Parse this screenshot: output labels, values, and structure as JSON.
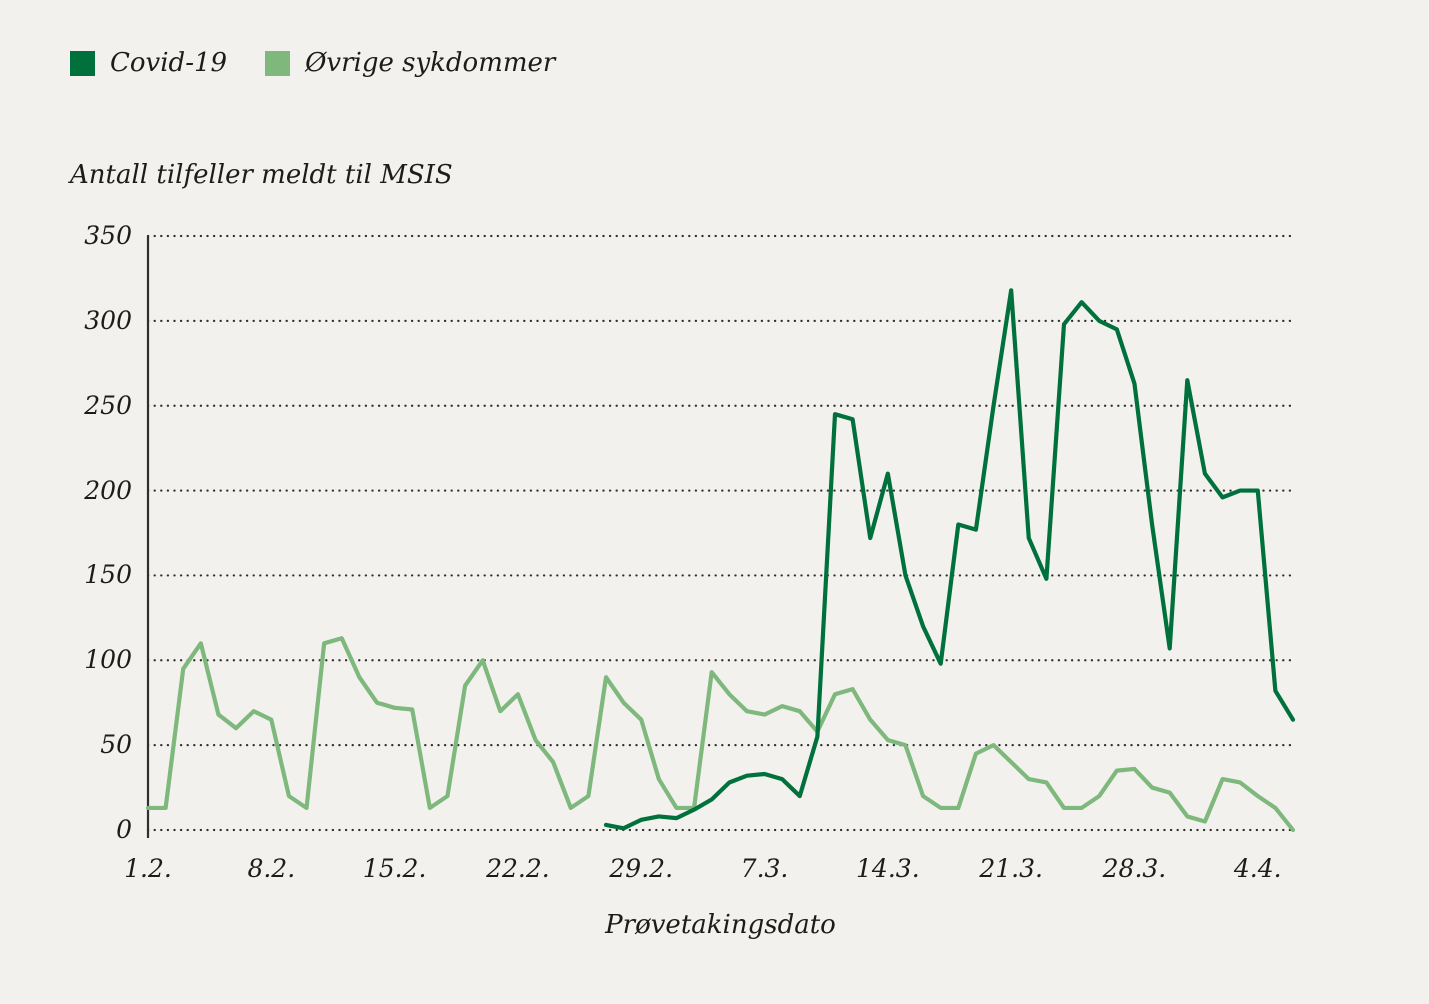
{
  "colors": {
    "background": "#f2f1ee",
    "grid": "#2f2f2e",
    "text": "#1c1c1b",
    "covid19": "#00703c",
    "other_diseases": "#7eb87d"
  },
  "legend": {
    "items": [
      {
        "label": "Covid-19",
        "color": "#00703c"
      },
      {
        "label": "Øvrige sykdommer",
        "color": "#7eb87d"
      }
    ]
  },
  "chart_data": {
    "type": "line",
    "title": "Antall tilfeller meldt til MSIS",
    "xlabel": "Prøvetakingsdato",
    "ylabel": "Antall tilfeller meldt til MSIS",
    "ylim": [
      0,
      350
    ],
    "yticks": [
      0,
      50,
      100,
      150,
      200,
      250,
      300,
      350
    ],
    "grid": "horizontal-dotted",
    "legend_position": "top-left",
    "days": 66,
    "x_ticks": [
      {
        "day": 0,
        "label": "1.2."
      },
      {
        "day": 7,
        "label": "8.2."
      },
      {
        "day": 14,
        "label": "15.2."
      },
      {
        "day": 21,
        "label": "22.2."
      },
      {
        "day": 28,
        "label": "29.2."
      },
      {
        "day": 35,
        "label": "7.3."
      },
      {
        "day": 42,
        "label": "14.3."
      },
      {
        "day": 49,
        "label": "21.3."
      },
      {
        "day": 56,
        "label": "28.3."
      },
      {
        "day": 63,
        "label": "4.4."
      }
    ],
    "series": [
      {
        "name": "Covid-19",
        "color": "#00703c",
        "start_day": 26,
        "values": [
          3,
          1,
          6,
          8,
          7,
          12,
          18,
          28,
          32,
          33,
          30,
          20,
          55,
          245,
          242,
          172,
          210,
          150,
          120,
          98,
          180,
          177,
          250,
          318,
          172,
          148,
          298,
          311,
          300,
          295,
          263,
          180,
          107,
          265,
          210,
          196,
          200,
          200,
          82,
          65
        ]
      },
      {
        "name": "Øvrige sykdommer",
        "color": "#7eb87d",
        "start_day": 0,
        "values": [
          13,
          13,
          95,
          110,
          68,
          60,
          70,
          65,
          20,
          13,
          110,
          113,
          90,
          75,
          72,
          71,
          13,
          20,
          85,
          100,
          70,
          80,
          53,
          40,
          13,
          20,
          90,
          75,
          65,
          30,
          13,
          13,
          93,
          80,
          70,
          68,
          73,
          70,
          58,
          80,
          83,
          65,
          53,
          50,
          20,
          13,
          13,
          45,
          50,
          40,
          30,
          28,
          13,
          13,
          20,
          35,
          36,
          25,
          22,
          8,
          5,
          30,
          28,
          20,
          13,
          0
        ]
      }
    ]
  }
}
